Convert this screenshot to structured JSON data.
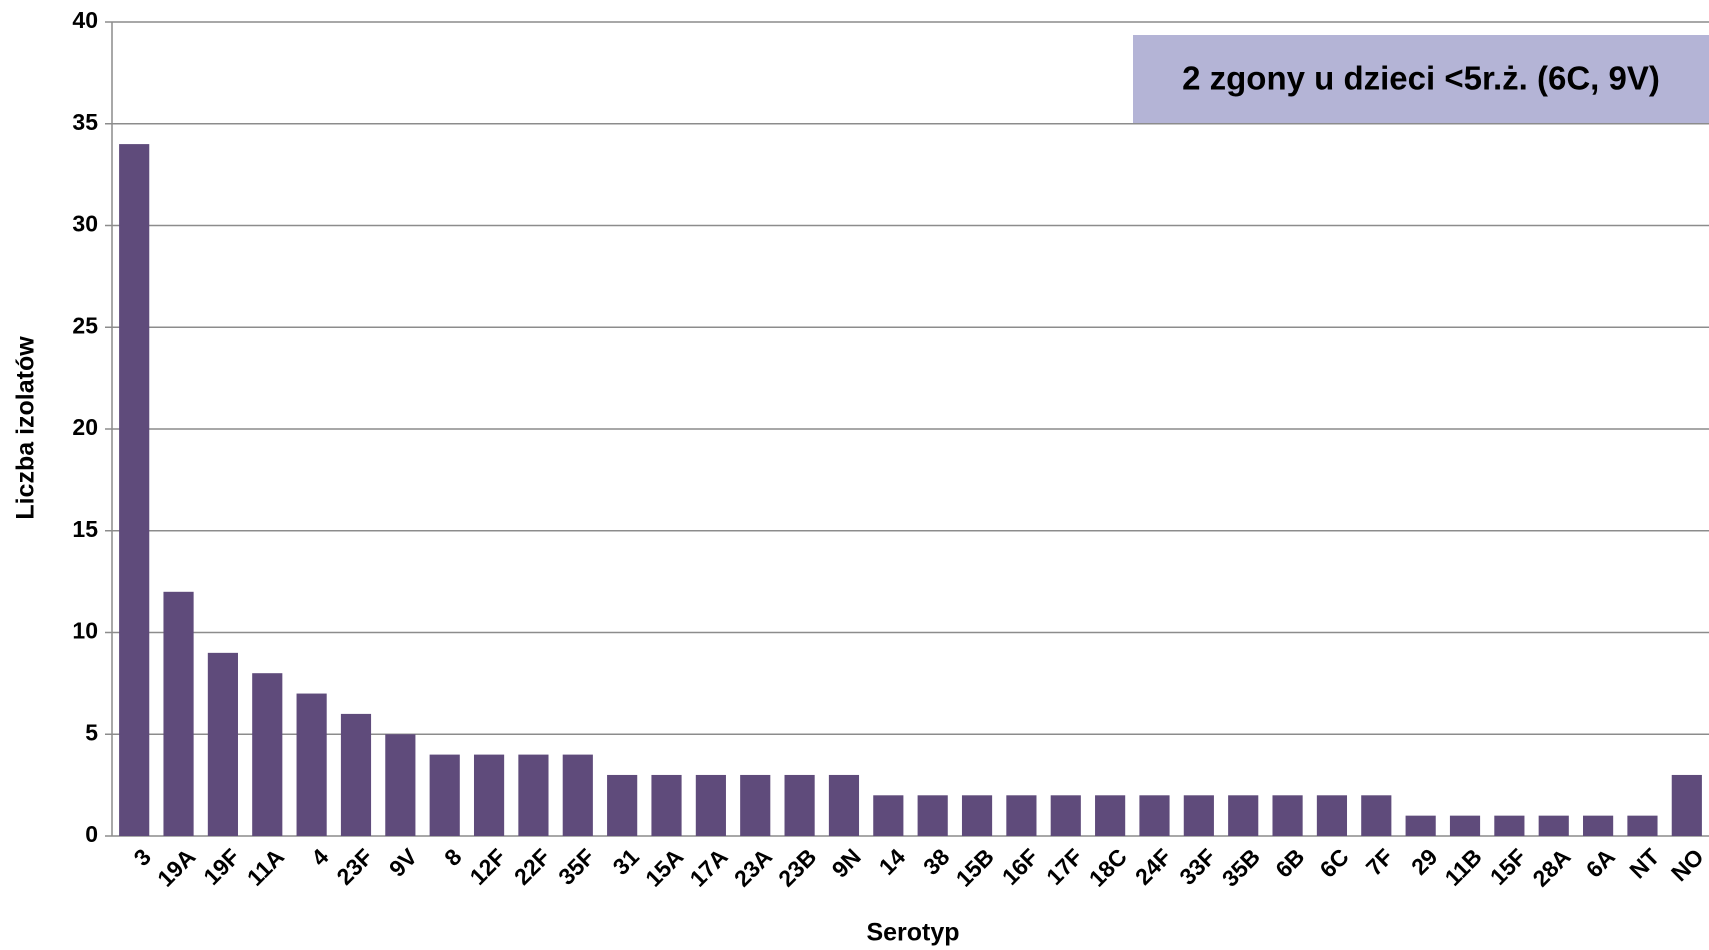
{
  "chart_data": {
    "type": "bar",
    "annotation": "2 zgony u dzieci <5r.ż. (6C, 9V)",
    "x_label": "Serotyp",
    "y_label": "Liczba izolatów",
    "categories": [
      "3",
      "19A",
      "19F",
      "11A",
      "4",
      "23F",
      "9V",
      "8",
      "12F",
      "22F",
      "35F",
      "31",
      "15A",
      "17A",
      "23A",
      "23B",
      "9N",
      "14",
      "38",
      "15B",
      "16F",
      "17F",
      "18C",
      "24F",
      "33F",
      "35B",
      "6B",
      "6C",
      "7F",
      "29",
      "11B",
      "15F",
      "28A",
      "6A",
      "NT",
      "NO"
    ],
    "values": [
      34,
      12,
      9,
      8,
      7,
      6,
      5,
      4,
      4,
      4,
      4,
      3,
      3,
      3,
      3,
      3,
      3,
      2,
      2,
      2,
      2,
      2,
      2,
      2,
      2,
      2,
      2,
      2,
      2,
      1,
      1,
      1,
      1,
      1,
      1,
      3
    ],
    "color": "#5f4b7b",
    "ylim": [
      0,
      40
    ],
    "yticks": [
      0,
      5,
      10,
      15,
      20,
      25,
      30,
      35,
      40
    ],
    "grid": true
  }
}
